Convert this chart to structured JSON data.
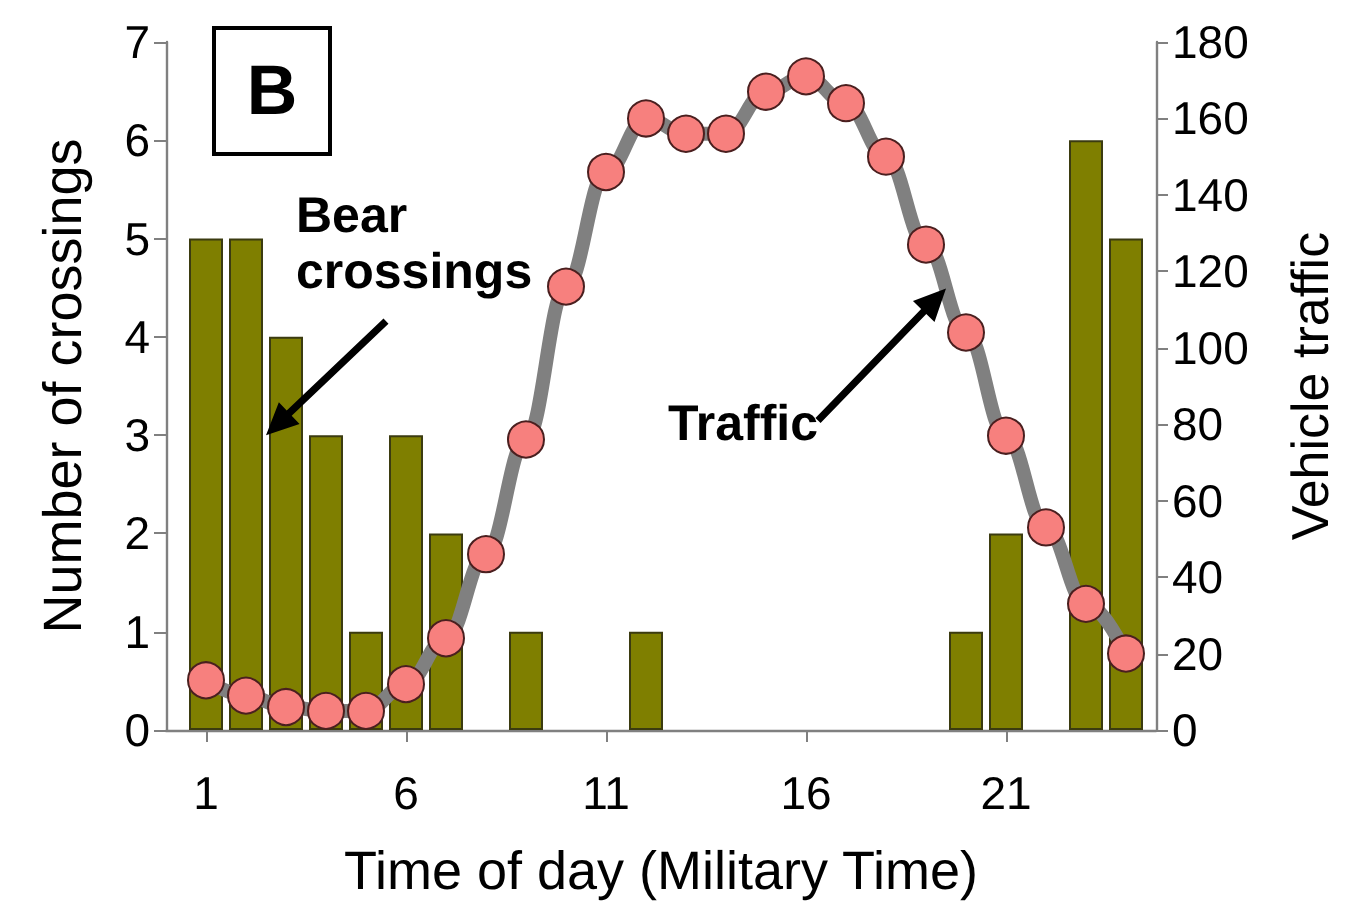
{
  "chart_data": {
    "type": "bar",
    "xlabel": "Time of day (Military Time)",
    "ylabel": "Number of crossings",
    "y2label": "Vehicle traffic",
    "x": [
      1,
      2,
      3,
      4,
      5,
      6,
      7,
      8,
      9,
      10,
      11,
      12,
      13,
      14,
      15,
      16,
      17,
      18,
      19,
      20,
      21,
      22,
      23,
      24
    ],
    "xlim": [
      0,
      24.75
    ],
    "xticks": [
      1,
      6,
      11,
      16,
      21
    ],
    "ylim": [
      0,
      7
    ],
    "yticks": [
      0,
      1,
      2,
      3,
      4,
      5,
      6,
      7
    ],
    "y2lim": [
      0,
      180
    ],
    "y2ticks": [
      0,
      20,
      40,
      60,
      80,
      100,
      120,
      140,
      160,
      180
    ],
    "marker": "circle",
    "line_style": "solid",
    "series": [
      {
        "color": "#7f7f00",
        "values": [
          5,
          5,
          4,
          3,
          1,
          3,
          2,
          0,
          1,
          0,
          0,
          1,
          0,
          0,
          0,
          0,
          0,
          0,
          0,
          1,
          2,
          0,
          6,
          5
        ]
      },
      {
        "type": "line",
        "axis": "y2",
        "color": "#808080",
        "colors": [
          "#f7807e",
          "#f7807e",
          "#f7807e",
          "#f7807e",
          "#f7807e",
          "#f7807e",
          "#f7807e",
          "#f7807e",
          "#f7807e",
          "#f7807e",
          "#f7807e",
          "#f7807e",
          "#f7807e",
          "#f7807e",
          "#f7807e",
          "#f7807e",
          "#f7807e",
          "#f7807e",
          "#f7807e",
          "#f7807e",
          "#f7807e",
          "#f7807e",
          "#f7807e",
          "#f7807e"
        ],
        "values": [
          13,
          9,
          6,
          5,
          5,
          12,
          24,
          46,
          76,
          116,
          146,
          160,
          156,
          156,
          167,
          171,
          164,
          150,
          127,
          104,
          77,
          53,
          33,
          20
        ]
      }
    ],
    "annotations": [
      "B",
      {
        "text": "Bear crossings",
        "x": 2.5,
        "y": 3
      },
      "Traffic"
    ]
  }
}
